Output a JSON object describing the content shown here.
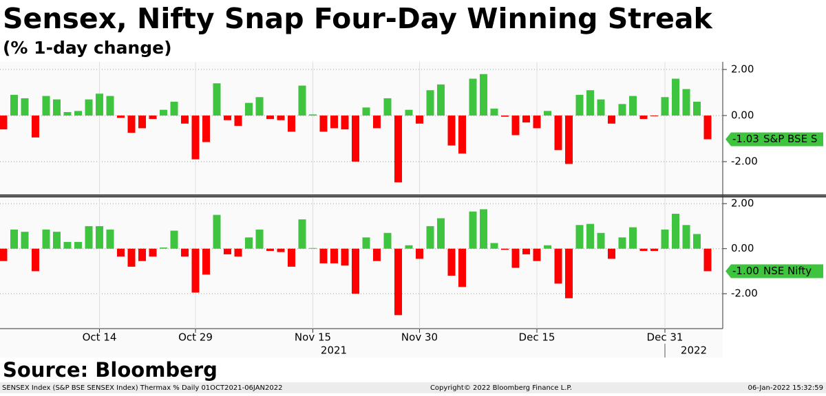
{
  "header": {
    "title": "Sensex, Nifty Snap Four-Day Winning Streak",
    "subtitle": "(% 1-day change)"
  },
  "chart_data": [
    {
      "type": "bar",
      "name": "S&P BSE S",
      "last_label": "-1.03",
      "categories": [
        null,
        null,
        null,
        null,
        null,
        null,
        null,
        null,
        null,
        "Oct 14",
        null,
        null,
        null,
        null,
        null,
        null,
        null,
        null,
        "Oct 29",
        null,
        null,
        null,
        null,
        null,
        null,
        null,
        null,
        null,
        null,
        "Nov 15",
        null,
        null,
        null,
        null,
        null,
        null,
        null,
        null,
        null,
        "Nov 30",
        null,
        null,
        null,
        null,
        null,
        null,
        null,
        null,
        null,
        null,
        "Dec 15",
        null,
        null,
        null,
        null,
        null,
        null,
        null,
        null,
        null,
        null,
        null,
        "Dec 31",
        null,
        null,
        null,
        null
      ],
      "values": [
        -0.6,
        0.9,
        0.75,
        -0.95,
        0.85,
        0.7,
        0.15,
        0.2,
        0.7,
        0.95,
        0.85,
        -0.1,
        -0.75,
        -0.55,
        -0.15,
        0.25,
        0.6,
        -0.35,
        -1.9,
        -1.15,
        1.4,
        -0.2,
        -0.45,
        0.55,
        0.8,
        -0.15,
        -0.2,
        -0.7,
        1.3,
        0.05,
        -0.7,
        -0.55,
        -0.6,
        -2.0,
        0.35,
        -0.55,
        0.75,
        -2.9,
        0.25,
        -0.35,
        1.1,
        1.35,
        -1.3,
        -1.65,
        1.6,
        1.8,
        0.3,
        -0.05,
        -0.85,
        -0.3,
        -0.55,
        0.2,
        -1.5,
        -2.1,
        0.9,
        1.1,
        0.7,
        -0.35,
        0.5,
        0.85,
        -0.15,
        -0.03,
        0.8,
        1.6,
        1.15,
        0.6,
        -1.03
      ],
      "up_color": "#3ec43e",
      "down_color": "#ff0000",
      "flag_color": "#3ec43e",
      "ylim": [
        -3.4,
        2.33
      ],
      "yticks": [
        {
          "value": 2,
          "label": "2.00"
        },
        {
          "value": 0,
          "label": "0.00"
        },
        {
          "value": -2,
          "label": "-2.00"
        }
      ],
      "grid": true
    },
    {
      "type": "bar",
      "name": "NSE Nifty",
      "last_label": "-1.00",
      "categories": [
        null,
        null,
        null,
        null,
        null,
        null,
        null,
        null,
        null,
        "Oct 14",
        null,
        null,
        null,
        null,
        null,
        null,
        null,
        null,
        "Oct 29",
        null,
        null,
        null,
        null,
        null,
        null,
        null,
        null,
        null,
        null,
        "Nov 15",
        null,
        null,
        null,
        null,
        null,
        null,
        null,
        null,
        null,
        "Nov 30",
        null,
        null,
        null,
        null,
        null,
        null,
        null,
        null,
        null,
        null,
        "Dec 15",
        null,
        null,
        null,
        null,
        null,
        null,
        null,
        null,
        null,
        null,
        null,
        "Dec 31",
        null,
        null,
        null,
        null
      ],
      "values": [
        -0.55,
        0.85,
        0.75,
        -1.0,
        0.85,
        0.75,
        0.3,
        0.3,
        1.0,
        1.0,
        0.85,
        -0.35,
        -0.8,
        -0.55,
        -0.35,
        0.05,
        0.8,
        -0.35,
        -1.95,
        -1.15,
        1.5,
        -0.25,
        -0.35,
        0.5,
        0.85,
        -0.1,
        -0.15,
        -0.8,
        1.3,
        0.03,
        -0.65,
        -0.65,
        -0.75,
        -2.0,
        0.5,
        -0.55,
        0.7,
        -2.95,
        0.15,
        -0.45,
        1.0,
        1.35,
        -1.2,
        -1.7,
        1.65,
        1.75,
        0.25,
        -0.05,
        -0.85,
        -0.25,
        -0.55,
        0.15,
        -1.55,
        -2.2,
        1.05,
        1.1,
        0.7,
        -0.45,
        0.5,
        0.95,
        -0.1,
        -0.1,
        0.85,
        1.55,
        1.05,
        0.65,
        -1.0
      ],
      "up_color": "#3ec43e",
      "down_color": "#ff0000",
      "flag_color": "#3ec43e",
      "ylim": [
        -3.55,
        2.25
      ],
      "yticks": [
        {
          "value": 2,
          "label": "2.00"
        },
        {
          "value": 0,
          "label": "0.00"
        },
        {
          "value": -2,
          "label": "-2.00"
        }
      ],
      "grid": true
    }
  ],
  "year_labels": [
    "2021",
    "2022"
  ],
  "footer": {
    "source": "Source: Bloomberg",
    "ticker": "SENSEX Index (S&P BSE SENSEX Index) Thermax %  Daily 01OCT2021-06JAN2022",
    "copyright": "Copyright© 2022 Bloomberg Finance L.P.",
    "timestamp": "06-Jan-2022 15:32:59"
  }
}
